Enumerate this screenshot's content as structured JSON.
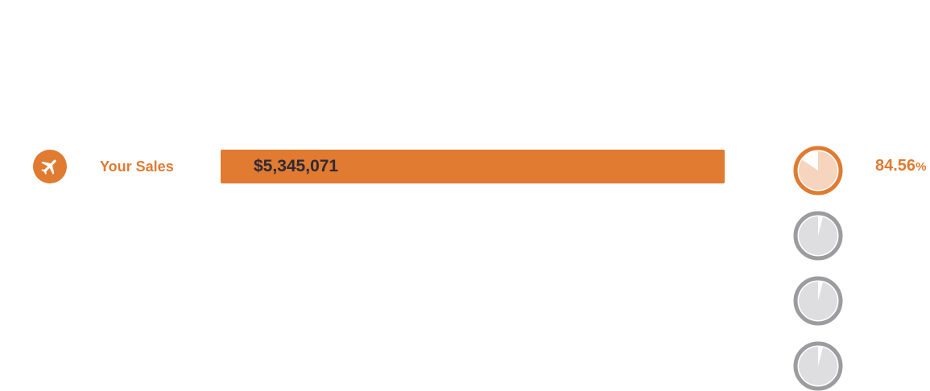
{
  "colors": {
    "accent": "#e07b31",
    "accent_light": "#f6d4bd",
    "inactive_ring": "#9c9c9f",
    "inactive_fill": "#dedee1"
  },
  "chart_data": {
    "type": "bar",
    "categories": [
      "Your Sales"
    ],
    "values": [
      5345071
    ],
    "value_labels": [
      "$5,345,071"
    ],
    "percent": 84.56,
    "percent_label": "84.56",
    "percent_sign": "%",
    "icon": "airplane-icon",
    "inactive_pies": [
      0.04,
      0.04,
      0.04
    ]
  }
}
